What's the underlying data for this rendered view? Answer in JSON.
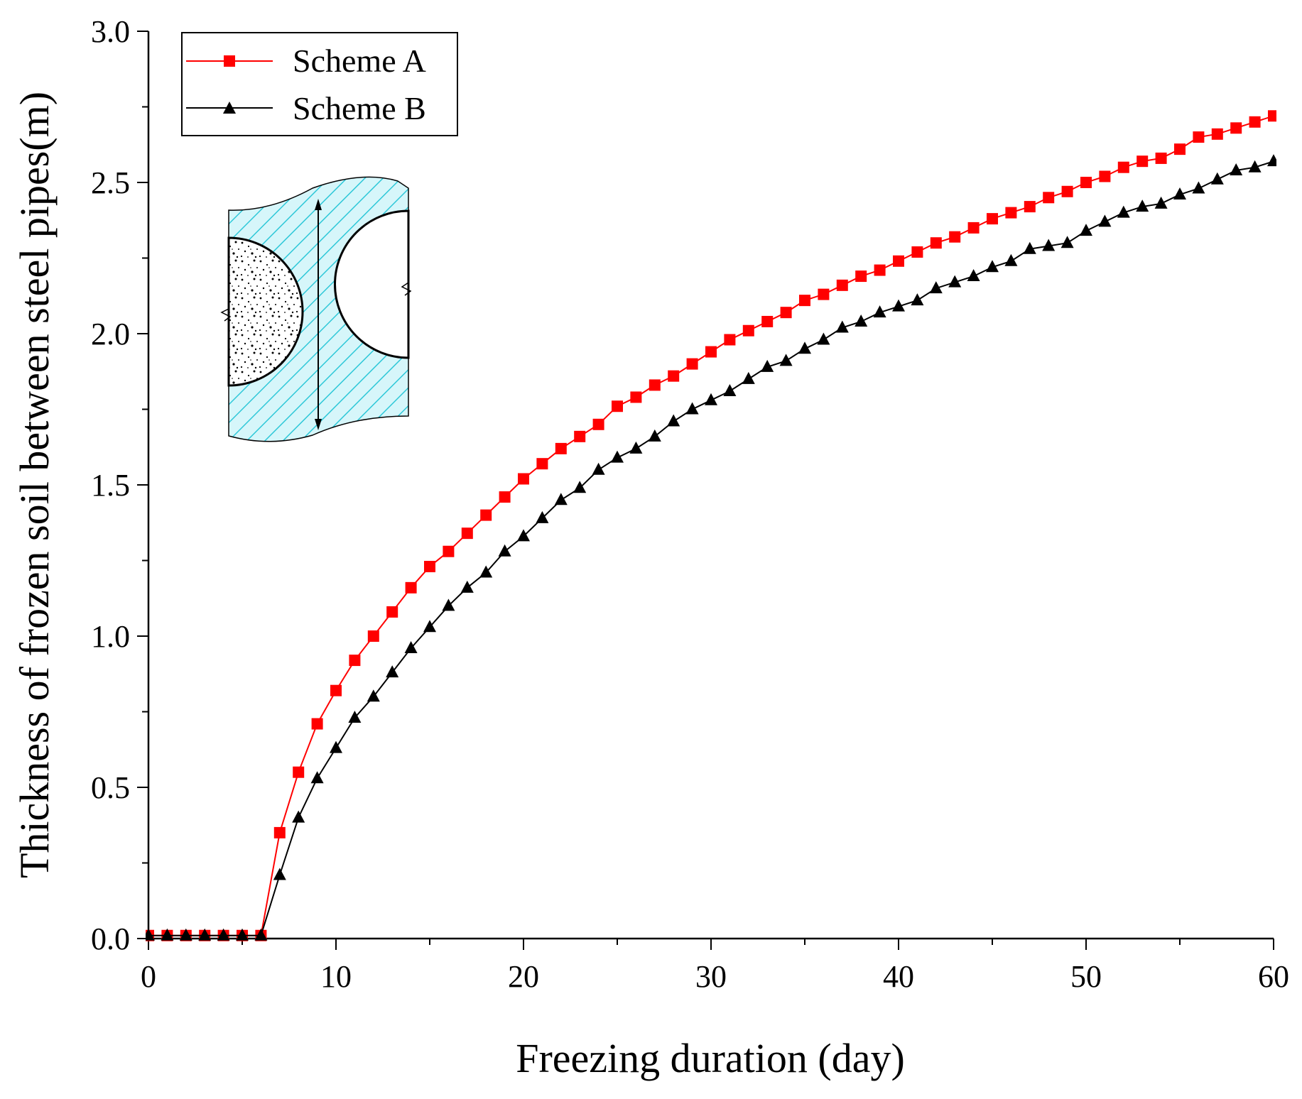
{
  "chart_data": {
    "type": "line",
    "xlabel": "Freezing duration (day)",
    "ylabel": "Thickness of frozen soil between steel pipes(m)",
    "xlim": [
      0,
      60
    ],
    "ylim": [
      0,
      3.0
    ],
    "xticks": [
      "0",
      "10",
      "20",
      "30",
      "40",
      "50",
      "60"
    ],
    "yticks": [
      "0.0",
      "0.5",
      "1.0",
      "1.5",
      "2.0",
      "2.5",
      "3.0"
    ],
    "grid": false,
    "legend_position": "top-left",
    "x": [
      0,
      1,
      2,
      3,
      4,
      5,
      6,
      7,
      8,
      9,
      10,
      11,
      12,
      13,
      14,
      15,
      16,
      17,
      18,
      19,
      20,
      21,
      22,
      23,
      24,
      25,
      26,
      27,
      28,
      29,
      30,
      31,
      32,
      33,
      34,
      35,
      36,
      37,
      38,
      39,
      40,
      41,
      42,
      43,
      44,
      45,
      46,
      47,
      48,
      49,
      50,
      51,
      52,
      53,
      54,
      55,
      56,
      57,
      58,
      59,
      60
    ],
    "series": [
      {
        "name": "Scheme A",
        "color": "#ff0000",
        "marker": "square",
        "values": [
          0.01,
          0.01,
          0.01,
          0.01,
          0.01,
          0.01,
          0.01,
          0.35,
          0.55,
          0.71,
          0.82,
          0.92,
          1.0,
          1.08,
          1.16,
          1.23,
          1.28,
          1.34,
          1.4,
          1.46,
          1.52,
          1.57,
          1.62,
          1.66,
          1.7,
          1.76,
          1.79,
          1.83,
          1.86,
          1.9,
          1.94,
          1.98,
          2.01,
          2.04,
          2.07,
          2.11,
          2.13,
          2.16,
          2.19,
          2.21,
          2.24,
          2.27,
          2.3,
          2.32,
          2.35,
          2.38,
          2.4,
          2.42,
          2.45,
          2.47,
          2.5,
          2.52,
          2.55,
          2.57,
          2.58,
          2.61,
          2.65,
          2.66,
          2.68,
          2.7,
          2.72
        ]
      },
      {
        "name": "Scheme B",
        "color": "#000000",
        "marker": "triangle",
        "values": [
          0.01,
          0.01,
          0.01,
          0.01,
          0.01,
          0.01,
          0.01,
          0.21,
          0.4,
          0.53,
          0.63,
          0.73,
          0.8,
          0.88,
          0.96,
          1.03,
          1.1,
          1.16,
          1.21,
          1.28,
          1.33,
          1.39,
          1.45,
          1.49,
          1.55,
          1.59,
          1.62,
          1.66,
          1.71,
          1.75,
          1.78,
          1.81,
          1.85,
          1.89,
          1.91,
          1.95,
          1.98,
          2.02,
          2.04,
          2.07,
          2.09,
          2.11,
          2.15,
          2.17,
          2.19,
          2.22,
          2.24,
          2.28,
          2.29,
          2.3,
          2.34,
          2.37,
          2.4,
          2.42,
          2.43,
          2.46,
          2.48,
          2.51,
          2.54,
          2.55,
          2.57
        ]
      }
    ]
  },
  "colors": {
    "inset_hatch": "#2ec8d8",
    "inset_fill": "#d6f6fa"
  }
}
